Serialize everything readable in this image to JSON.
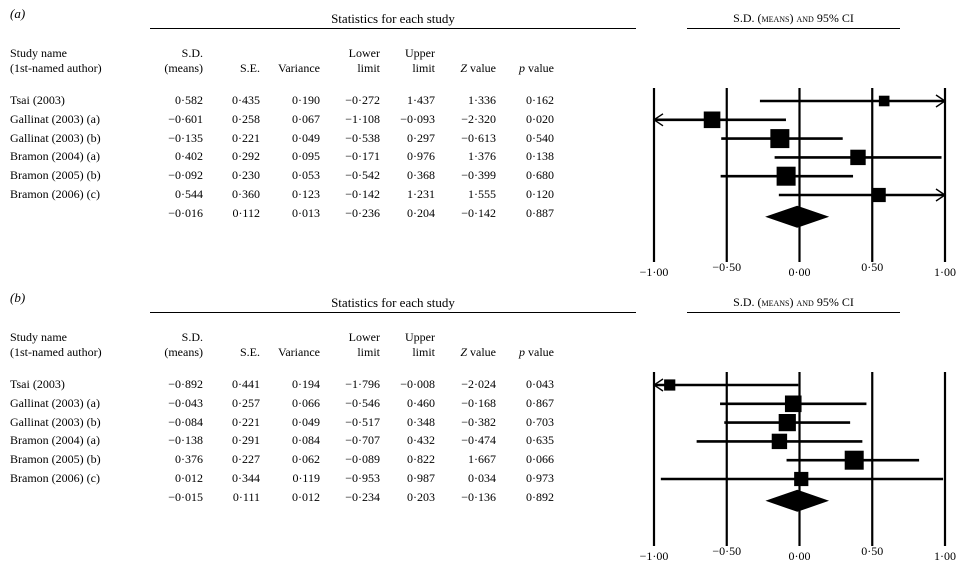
{
  "header": {
    "stats_title": "Statistics for each study",
    "forest_title": "S.D. (means) and 95% CI"
  },
  "columns": {
    "study_line1": "Study name",
    "study_line2": "(1st-named author)",
    "sd_line1": "S.D.",
    "sd_line2": "(means)",
    "se": "S.E.",
    "variance": "Variance",
    "lower_line1": "Lower",
    "lower_line2": "limit",
    "upper_line1": "Upper",
    "upper_line2": "limit",
    "z": "Z value",
    "p": "p value"
  },
  "chart_data": [
    {
      "type": "forest",
      "panel_label": "(a)",
      "title": "S.D. (means) and 95% CI",
      "xlim": [
        -1.0,
        1.0
      ],
      "xticks": [
        -1.0,
        -0.5,
        0.0,
        0.5,
        1.0
      ],
      "xtick_labels": [
        "−1·00",
        "−0·50",
        "0·00",
        "0·50",
        "1·00"
      ],
      "rows": [
        {
          "study": "Tsai (2003)",
          "sd": "0·582",
          "se": "0·435",
          "variance": "0·190",
          "lower": "−0·272",
          "upper": "1·437",
          "z": "1·336",
          "p": "0·162",
          "est": 0.582,
          "lo": -0.272,
          "hi": 1.437,
          "size": 0.3
        },
        {
          "study": "Gallinat (2003) (a)",
          "sd": "−0·601",
          "se": "0·258",
          "variance": "0·067",
          "lower": "−1·108",
          "upper": "−0·093",
          "z": "−2·320",
          "p": "0·020",
          "est": -0.601,
          "lo": -1.108,
          "hi": -0.093,
          "size": 0.8
        },
        {
          "study": "Gallinat (2003) (b)",
          "sd": "−0·135",
          "se": "0·221",
          "variance": "0·049",
          "lower": "−0·538",
          "upper": "0·297",
          "z": "−0·613",
          "p": "0·540",
          "est": -0.135,
          "lo": -0.538,
          "hi": 0.297,
          "size": 1.0
        },
        {
          "study": "Bramon (2004) (a)",
          "sd": "0·402",
          "se": "0·292",
          "variance": "0·095",
          "lower": "−0·171",
          "upper": "0·976",
          "z": "1·376",
          "p": "0·138",
          "est": 0.402,
          "lo": -0.171,
          "hi": 0.976,
          "size": 0.7
        },
        {
          "study": "Bramon (2005) (b)",
          "sd": "−0·092",
          "se": "0·230",
          "variance": "0·053",
          "lower": "−0·542",
          "upper": "0·368",
          "z": "−0·399",
          "p": "0·680",
          "est": -0.092,
          "lo": -0.542,
          "hi": 0.368,
          "size": 1.0
        },
        {
          "study": "Bramon (2006) (c)",
          "sd": "0·544",
          "se": "0·360",
          "variance": "0·123",
          "lower": "−0·142",
          "upper": "1·231",
          "z": "1·555",
          "p": "0·120",
          "est": 0.544,
          "lo": -0.142,
          "hi": 1.231,
          "size": 0.6
        }
      ],
      "summary": {
        "study": "",
        "sd": "−0·016",
        "se": "0·112",
        "variance": "0·013",
        "lower": "−0·236",
        "upper": "0·204",
        "z": "−0·142",
        "p": "0·887",
        "est": -0.016,
        "lo": -0.236,
        "hi": 0.204
      }
    },
    {
      "type": "forest",
      "panel_label": "(b)",
      "title": "S.D. (means) and 95% CI",
      "xlim": [
        -1.0,
        1.0
      ],
      "xticks": [
        -1.0,
        -0.5,
        0.0,
        0.5,
        1.0
      ],
      "xtick_labels": [
        "−1·00",
        "−0·50",
        "0·00",
        "0·50",
        "1·00"
      ],
      "rows": [
        {
          "study": "Tsai (2003)",
          "sd": "−0·892",
          "se": "0·441",
          "variance": "0·194",
          "lower": "−1·796",
          "upper": "−0·008",
          "z": "−2·024",
          "p": "0·043",
          "est": -0.892,
          "lo": -1.796,
          "hi": -0.008,
          "size": 0.35
        },
        {
          "study": "Gallinat (2003) (a)",
          "sd": "−0·043",
          "se": "0·257",
          "variance": "0·066",
          "lower": "−0·546",
          "upper": "0·460",
          "z": "−0·168",
          "p": "0·867",
          "est": -0.043,
          "lo": -0.546,
          "hi": 0.46,
          "size": 0.8
        },
        {
          "study": "Gallinat (2003) (b)",
          "sd": "−0·084",
          "se": "0·221",
          "variance": "0·049",
          "lower": "−0·517",
          "upper": "0·348",
          "z": "−0·382",
          "p": "0·703",
          "est": -0.084,
          "lo": -0.517,
          "hi": 0.348,
          "size": 0.85
        },
        {
          "study": "Bramon (2004) (a)",
          "sd": "−0·138",
          "se": "0·291",
          "variance": "0·084",
          "lower": "−0·707",
          "upper": "0·432",
          "z": "−0·474",
          "p": "0·635",
          "est": -0.138,
          "lo": -0.707,
          "hi": 0.432,
          "size": 0.7
        },
        {
          "study": "Bramon (2005) (b)",
          "sd": "0·376",
          "se": "0·227",
          "variance": "0·062",
          "lower": "−0·089",
          "upper": "0·822",
          "z": "1·667",
          "p": "0·066",
          "est": 0.376,
          "lo": -0.089,
          "hi": 0.822,
          "size": 1.0
        },
        {
          "study": "Bramon (2006) (c)",
          "sd": "0·012",
          "se": "0·344",
          "variance": "0·119",
          "lower": "−0·953",
          "upper": "0·987",
          "z": "0·034",
          "p": "0·973",
          "est": 0.012,
          "lo": -0.953,
          "hi": 0.987,
          "size": 0.6
        }
      ],
      "summary": {
        "study": "",
        "sd": "−0·015",
        "se": "0·111",
        "variance": "0·012",
        "lower": "−0·234",
        "upper": "0·203",
        "z": "−0·136",
        "p": "0·892",
        "est": -0.015,
        "lo": -0.234,
        "hi": 0.203
      }
    }
  ]
}
